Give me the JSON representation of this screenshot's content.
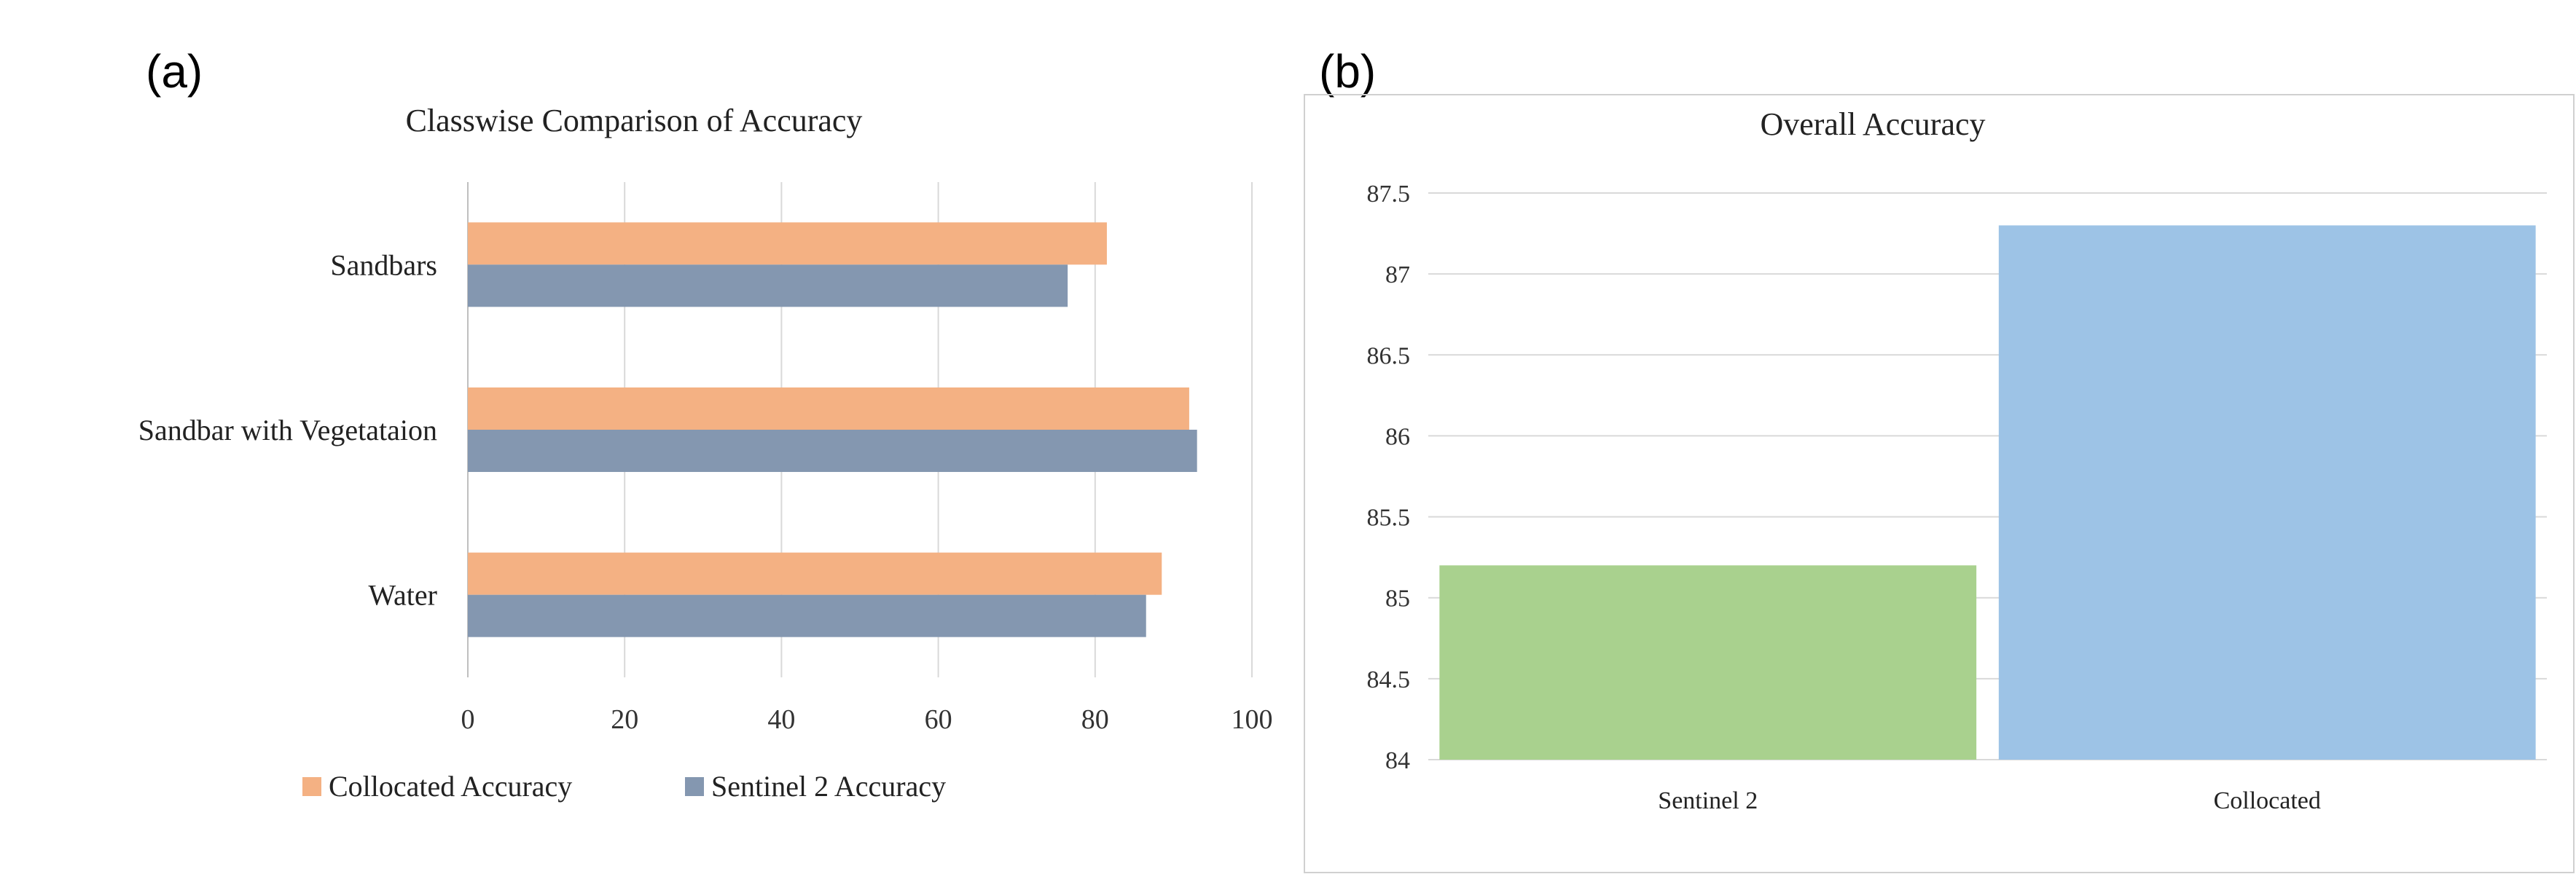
{
  "panels": {
    "a_label": "(a)",
    "b_label": "(b)"
  },
  "chart_data": [
    {
      "type": "bar",
      "orientation": "horizontal",
      "title": "Classwise Comparison of Accuracy",
      "categories": [
        "Sandbars",
        "Sandbar with Vegetataion",
        "Water"
      ],
      "series": [
        {
          "name": "Collocated Accuracy",
          "color": "#f4b183",
          "values": [
            81.5,
            92,
            88.5
          ]
        },
        {
          "name": "Sentinel 2 Accuracy",
          "color": "#8497b0",
          "values": [
            76.5,
            93,
            86.5
          ]
        }
      ],
      "xlim": [
        0,
        100
      ],
      "xticks": [
        "0",
        "20",
        "40",
        "60",
        "80",
        "100"
      ],
      "xlabel": "",
      "ylabel": "",
      "grid": "vertical",
      "legend_position": "bottom"
    },
    {
      "type": "bar",
      "orientation": "vertical",
      "title": "Overall Accuracy",
      "categories": [
        "Sentinel 2",
        "Collocated"
      ],
      "values": [
        85.2,
        87.3
      ],
      "colors": [
        "#a9d18e",
        "#9dc3e6"
      ],
      "ylim": [
        84,
        87.5
      ],
      "yticks": [
        "84",
        "84.5",
        "85",
        "85.5",
        "86",
        "86.5",
        "87",
        "87.5"
      ],
      "xlabel": "",
      "ylabel": "",
      "grid": "horizontal",
      "border": true
    }
  ]
}
